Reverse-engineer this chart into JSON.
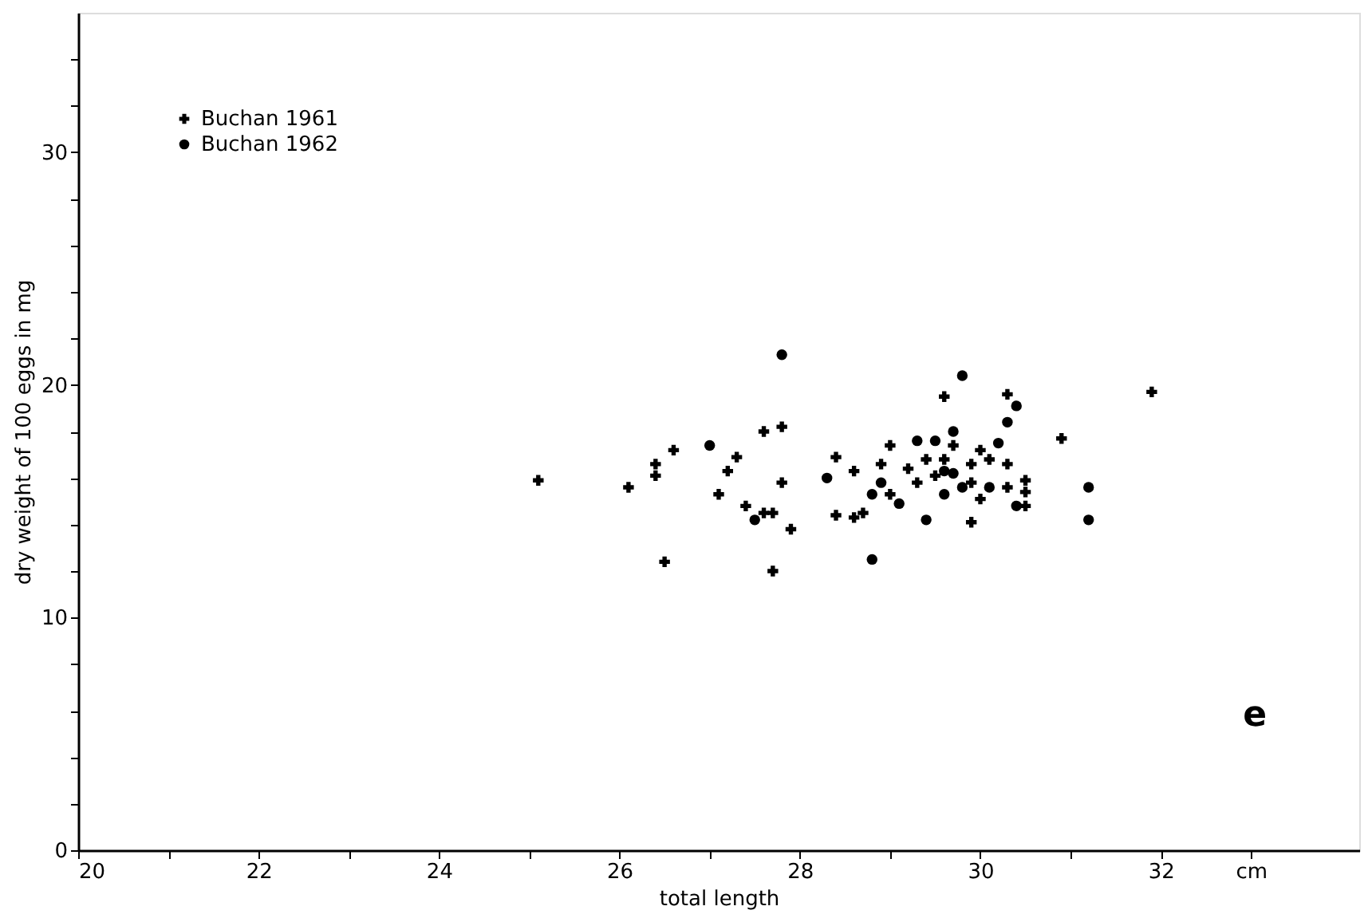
{
  "chart_data": {
    "type": "scatter",
    "xlabel": "total length",
    "ylabel": "dry weight of 100 eggs in mg",
    "xlim": [
      20,
      34.2
    ],
    "ylim": [
      0,
      36
    ],
    "xticks": [
      20,
      {
        "value": 21,
        "label": null
      },
      22,
      {
        "value": 23,
        "label": null
      },
      24,
      {
        "value": 25,
        "label": null
      },
      26,
      {
        "value": 27,
        "label": null
      },
      28,
      {
        "value": 29,
        "label": null
      },
      30,
      {
        "value": 31,
        "label": null
      },
      32,
      {
        "value": 33,
        "label": "cm"
      }
    ],
    "yticks": [
      0,
      {
        "value": 2,
        "label": null
      },
      {
        "value": 4,
        "label": null
      },
      {
        "value": 6,
        "label": null
      },
      {
        "value": 8,
        "label": null
      },
      10,
      {
        "value": 12,
        "label": null
      },
      {
        "value": 14,
        "label": null
      },
      {
        "value": 16,
        "label": null
      },
      {
        "value": 18,
        "label": null
      },
      20,
      {
        "value": 22,
        "label": null
      },
      {
        "value": 24,
        "label": null
      },
      {
        "value": 26,
        "label": null
      },
      {
        "value": 28,
        "label": null
      },
      30,
      {
        "value": 32,
        "label": null
      },
      {
        "value": 34,
        "label": null
      }
    ],
    "grid": false,
    "legend": "top left",
    "annotations": [
      "e"
    ],
    "series": [
      {
        "name": "Buchan 1961",
        "color": "#000000",
        "marker": "cross",
        "x": [
          25.1,
          26.1,
          26.4,
          26.4,
          26.6,
          26.5,
          27.3,
          27.2,
          27.1,
          27.6,
          27.8,
          27.8,
          27.4,
          27.6,
          27.7,
          27.7,
          27.9,
          28.4,
          28.4,
          28.6,
          28.7,
          28.6,
          28.9,
          29.0,
          29.0,
          29.2,
          29.3,
          29.4,
          29.6,
          29.5,
          29.6,
          29.7,
          29.9,
          30.0,
          30.1,
          29.9,
          30.0,
          29.9,
          30.3,
          30.3,
          30.3,
          30.5,
          30.5,
          30.5,
          30.9,
          31.9
        ],
        "values": [
          15.9,
          15.6,
          16.6,
          16.1,
          17.2,
          12.4,
          16.9,
          16.3,
          15.3,
          18.0,
          18.2,
          15.8,
          14.8,
          14.5,
          14.5,
          12.0,
          13.8,
          16.9,
          14.4,
          14.3,
          14.5,
          16.3,
          16.6,
          17.4,
          15.3,
          16.4,
          15.8,
          16.8,
          16.8,
          16.1,
          19.5,
          17.4,
          16.6,
          17.2,
          16.8,
          15.8,
          15.1,
          14.1,
          19.6,
          16.6,
          15.6,
          15.9,
          15.4,
          14.8,
          17.7,
          19.7
        ]
      },
      {
        "name": "Buchan 1962",
        "color": "#000000",
        "marker": "circle",
        "x": [
          27.8,
          27.0,
          27.5,
          28.3,
          28.8,
          28.9,
          28.8,
          29.1,
          29.3,
          29.4,
          29.5,
          29.8,
          29.7,
          29.6,
          29.6,
          29.7,
          29.8,
          30.1,
          30.2,
          30.4,
          30.3,
          30.4,
          31.2,
          31.2
        ],
        "values": [
          21.3,
          17.4,
          14.2,
          16.0,
          15.3,
          15.8,
          12.5,
          14.9,
          17.6,
          14.2,
          17.6,
          20.4,
          18.0,
          16.3,
          15.3,
          16.2,
          15.6,
          15.6,
          17.5,
          19.1,
          18.4,
          14.8,
          15.6,
          14.2
        ]
      }
    ]
  }
}
